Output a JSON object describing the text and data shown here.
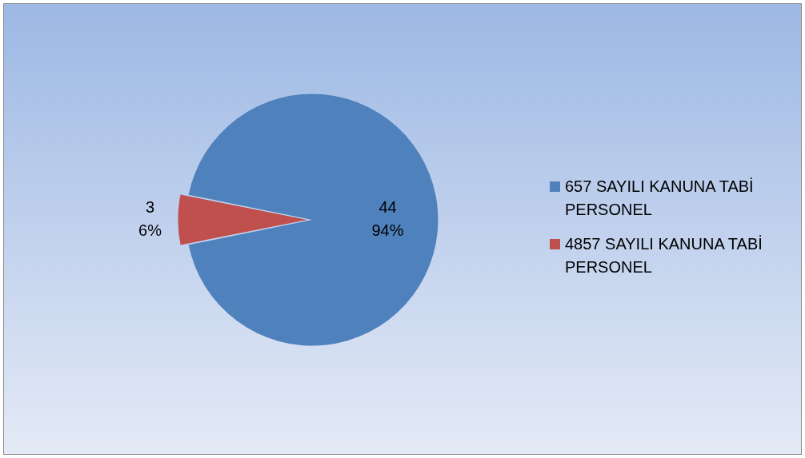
{
  "chart_data": {
    "type": "pie",
    "categories": [
      "657 SAYILI KANUNA TABİ PERSONEL",
      "4857 SAYILI KANUNA TABİ PERSONEL"
    ],
    "values": [
      44,
      3
    ],
    "colors": [
      "#4f81bd",
      "#c0504d"
    ],
    "value_labels": [
      "44\n94%",
      "3\n6%"
    ],
    "legend": "right"
  }
}
